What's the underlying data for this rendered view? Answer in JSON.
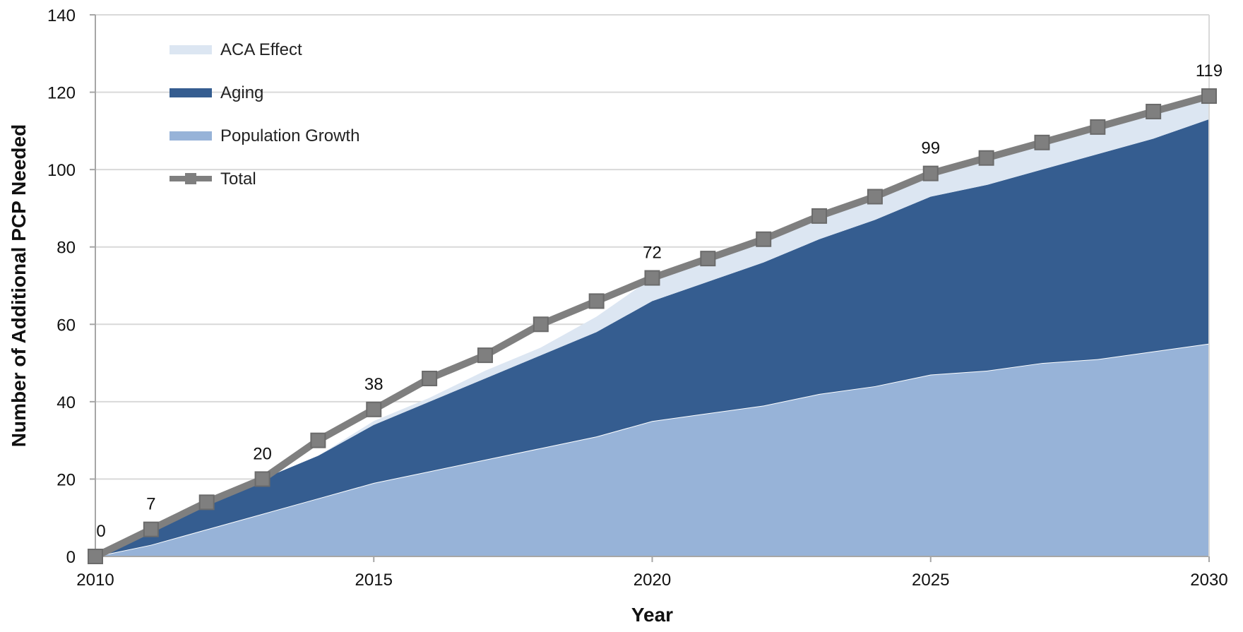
{
  "chart_data": {
    "type": "area",
    "x": [
      2010,
      2011,
      2012,
      2013,
      2014,
      2015,
      2016,
      2017,
      2018,
      2019,
      2020,
      2021,
      2022,
      2023,
      2024,
      2025,
      2026,
      2027,
      2028,
      2029,
      2030
    ],
    "series": [
      {
        "name": "Population Growth",
        "type": "area",
        "color": "#97b3d8",
        "values": [
          0,
          3,
          7,
          11,
          15,
          19,
          22,
          25,
          28,
          31,
          35,
          37,
          39,
          42,
          44,
          47,
          48,
          50,
          51,
          53,
          55
        ]
      },
      {
        "name": "Aging",
        "type": "area",
        "color": "#355d90",
        "values": [
          0,
          4,
          7,
          9,
          11,
          15,
          18,
          21,
          24,
          27,
          31,
          34,
          37,
          40,
          43,
          46,
          48,
          50,
          53,
          55,
          58
        ]
      },
      {
        "name": "ACA Effect",
        "type": "area",
        "color": "#dce6f2",
        "values": [
          0,
          0,
          0,
          0,
          0,
          1,
          1,
          2,
          2,
          4,
          6,
          6,
          6,
          6,
          6,
          6,
          7,
          7,
          7,
          7,
          6
        ]
      },
      {
        "name": "Total",
        "type": "line",
        "color": "#7f7f7f",
        "values": [
          0,
          7,
          14,
          20,
          30,
          38,
          46,
          52,
          60,
          66,
          72,
          77,
          82,
          88,
          93,
          99,
          103,
          107,
          111,
          115,
          119
        ]
      }
    ],
    "data_labels": [
      {
        "x": 2010,
        "text": "0"
      },
      {
        "x": 2011,
        "text": "7"
      },
      {
        "x": 2013,
        "text": "20"
      },
      {
        "x": 2015,
        "text": "38"
      },
      {
        "x": 2020,
        "text": "72"
      },
      {
        "x": 2025,
        "text": "99"
      },
      {
        "x": 2030,
        "text": "119"
      }
    ],
    "legend": [
      "ACA Effect",
      "Aging",
      "Population Growth",
      "Total"
    ],
    "legend_position": "top-left",
    "xlabel": "Year",
    "ylabel": "Number of  Additional PCP Needed",
    "xlim": [
      2010,
      2030
    ],
    "ylim": [
      0,
      140
    ],
    "x_ticks": [
      2010,
      2015,
      2020,
      2025,
      2030
    ],
    "y_ticks": [
      0,
      20,
      40,
      60,
      80,
      100,
      120,
      140
    ],
    "grid": "horizontal"
  }
}
